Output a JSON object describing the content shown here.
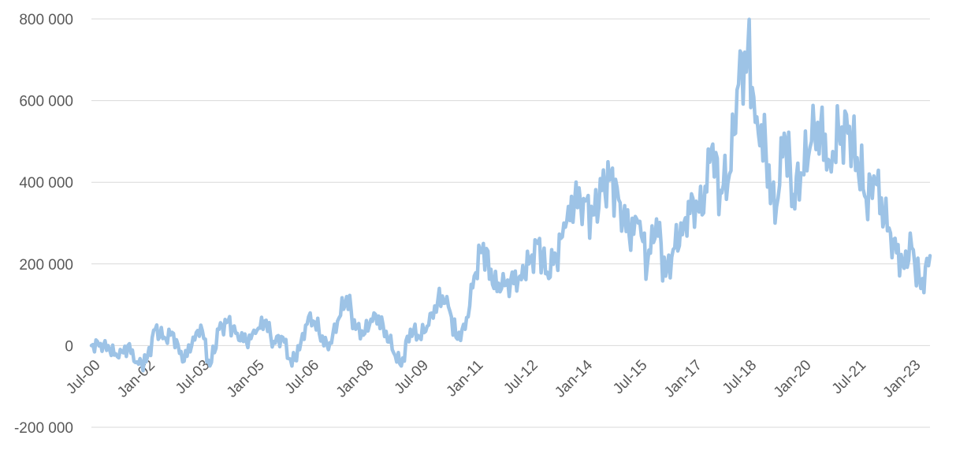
{
  "chart_data": {
    "type": "line",
    "title": "",
    "xlabel": "",
    "ylabel": "",
    "ylim": [
      -200000,
      800000
    ],
    "y_ticks": [
      -200000,
      0,
      200000,
      400000,
      600000,
      800000
    ],
    "y_tick_labels": [
      "-200 000",
      "0",
      "200 000",
      "400 000",
      "600 000",
      "800 000"
    ],
    "x_tick_labels": [
      "Jul-00",
      "Jan-02",
      "Jul-03",
      "Jan-05",
      "Jul-06",
      "Jan-08",
      "Jul-09",
      "Jan-11",
      "Jul-12",
      "Jan-14",
      "Jul-15",
      "Jan-17",
      "Jul-18",
      "Jan-20",
      "Jul-21",
      "Jan-23"
    ],
    "x_range": [
      "2000-07",
      "2023-07"
    ],
    "grid": true,
    "legend": "none",
    "series": [
      {
        "color": "#9dc3e6",
        "x": [
          "2000-07",
          "2000-10",
          "2001-01",
          "2001-04",
          "2001-07",
          "2001-10",
          "2002-01",
          "2002-04",
          "2002-07",
          "2002-10",
          "2003-01",
          "2003-04",
          "2003-07",
          "2003-10",
          "2004-01",
          "2004-04",
          "2004-07",
          "2004-10",
          "2005-01",
          "2005-04",
          "2005-07",
          "2005-10",
          "2006-01",
          "2006-04",
          "2006-07",
          "2006-10",
          "2007-01",
          "2007-04",
          "2007-07",
          "2007-10",
          "2008-01",
          "2008-04",
          "2008-07",
          "2008-10",
          "2009-01",
          "2009-04",
          "2009-07",
          "2009-10",
          "2010-01",
          "2010-04",
          "2010-07",
          "2010-10",
          "2011-01",
          "2011-04",
          "2011-07",
          "2011-10",
          "2012-01",
          "2012-04",
          "2012-07",
          "2012-10",
          "2013-01",
          "2013-04",
          "2013-07",
          "2013-10",
          "2014-01",
          "2014-04",
          "2014-07",
          "2014-10",
          "2015-01",
          "2015-04",
          "2015-07",
          "2015-10",
          "2016-01",
          "2016-04",
          "2016-07",
          "2016-10",
          "2017-01",
          "2017-04",
          "2017-07",
          "2017-10",
          "2018-01",
          "2018-04",
          "2018-07",
          "2018-10",
          "2019-01",
          "2019-04",
          "2019-07",
          "2019-10",
          "2020-01",
          "2020-04",
          "2020-07",
          "2020-10",
          "2021-01",
          "2021-04",
          "2021-07",
          "2021-10",
          "2022-01",
          "2022-04",
          "2022-07",
          "2022-10",
          "2023-01",
          "2023-04",
          "2023-07"
        ],
        "values": [
          0,
          5,
          -10,
          -30,
          0,
          -40,
          -40,
          40,
          20,
          30,
          -40,
          0,
          50,
          -50,
          40,
          60,
          30,
          10,
          30,
          60,
          10,
          20,
          -50,
          10,
          80,
          30,
          -10,
          60,
          120,
          40,
          30,
          80,
          50,
          -10,
          -50,
          40,
          20,
          50,
          110,
          120,
          20,
          40,
          170,
          250,
          150,
          140,
          160,
          170,
          200,
          250,
          180,
          220,
          290,
          350,
          360,
          320,
          380,
          420,
          350,
          270,
          300,
          200,
          310,
          170,
          240,
          300,
          360,
          320,
          480,
          380,
          420,
          640,
          720,
          560,
          480,
          300,
          520,
          370,
          420,
          500,
          540,
          450,
          520,
          520,
          460,
          360,
          400,
          310,
          260,
          200,
          240,
          140,
          220
        ]
      }
    ]
  }
}
